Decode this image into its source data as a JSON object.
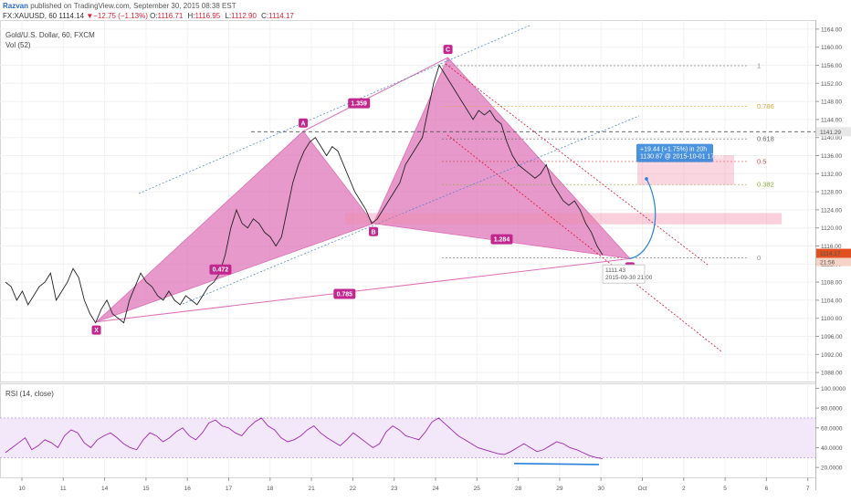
{
  "header": {
    "publisher": "Razvan",
    "published_text": "published on TradingView.com, September 30, 2015 08:38 EST"
  },
  "symbol_bar": {
    "symbol": "FX:XAUUSD, 60",
    "last": "1114.14",
    "change": "▼−12.75 (−1.13%)",
    "o_label": "O:",
    "o_value": "1116.71",
    "h_label": "H:",
    "h_value": "1116.95",
    "l_label": "L:",
    "l_value": "1112.90",
    "c_label": "C:",
    "c_value": "1114.17"
  },
  "panes": {
    "main_title": "Gold/U.S. Dollar, 60, FXCM",
    "volume_label": "Vol (52)",
    "rsi_title": "RSI (14, close)"
  },
  "colors": {
    "pattern_fill": "#dd6db5",
    "pattern_label": "#c2278f",
    "candle": "#222222",
    "fib_line": "#8c8c8c",
    "fib_618": "#666666",
    "fib_05": "#d24a4a",
    "fib_0382": "#8cb040",
    "fib_0786": "#e0a640",
    "trend_line": "#4a78d0",
    "channel": "#e01030",
    "projection": "#2980d9",
    "rsi_band": "#f3e8fa",
    "rsi_line": "#9c27b0",
    "price_tag": "#e05020"
  },
  "chart_data": {
    "type": "line",
    "title": "Gold/U.S. Dollar, 60, FXCM",
    "price_axis": {
      "ticks": [
        "1164.00",
        "1160.00",
        "1156.00",
        "1152.00",
        "1148.00",
        "1144.00",
        "1140.00",
        "1136.00",
        "1132.00",
        "1128.00",
        "1124.00",
        "1120.00",
        "1116.00",
        "1112.00",
        "1108.00",
        "1104.00",
        "1100.00",
        "1096.00",
        "1092.00",
        "1088.00"
      ],
      "ylim": [
        1086,
        1166
      ],
      "current_price": "1114.17",
      "current_time": "21:56",
      "line_price": "1141.29"
    },
    "rsi_axis": {
      "ticks": [
        "100.0000",
        "80.0000",
        "60.0000",
        "40.0000",
        "20.0000"
      ],
      "ylim": [
        10,
        105
      ],
      "band": [
        30,
        70
      ]
    },
    "date_axis": [
      "10",
      "11",
      "14",
      "15",
      "16",
      "17",
      "18",
      "21",
      "22",
      "23",
      "24",
      "25",
      "28",
      "29",
      "30",
      "Oct",
      "2",
      "5",
      "6",
      "7"
    ],
    "pattern_points": [
      {
        "label": "X",
        "date_index": 1.8,
        "price": 1099.2
      },
      {
        "label": "A",
        "date_index": 6.8,
        "price": 1141.4
      },
      {
        "label": "B",
        "date_index": 8.5,
        "price": 1121.0
      },
      {
        "label": "C",
        "date_index": 10.3,
        "price": 1157.7
      },
      {
        "label": "D",
        "date_index": 14.7,
        "price": 1113.2
      }
    ],
    "ratios": [
      "1.359",
      "0.472",
      "1.284",
      "0.785"
    ],
    "fib_levels": [
      {
        "label": "1",
        "price": 1155.9
      },
      {
        "label": "0.786",
        "price": 1146.9
      },
      {
        "label": "0.618",
        "price": 1139.7
      },
      {
        "label": "0.5",
        "price": 1134.7
      },
      {
        "label": "0.382",
        "price": 1129.6
      },
      {
        "label": "0",
        "price": 1113.4
      }
    ],
    "projection": {
      "text": "+19.44 (+1.75%) in 20h",
      "sub": "1130.87  @ 2015-10-01  17:00"
    },
    "low_marker": {
      "price": "1111.43",
      "time": "2015-09-30 21:00"
    },
    "price_series": [
      1108,
      1107,
      1104,
      1106,
      1103,
      1105,
      1107,
      1108,
      1110,
      1104,
      1106,
      1108,
      1111,
      1109,
      1104,
      1101,
      1099,
      1102,
      1104,
      1101,
      1100,
      1099,
      1104,
      1107,
      1110,
      1108,
      1107,
      1105,
      1104,
      1106,
      1104,
      1103,
      1105,
      1104,
      1103,
      1105,
      1107,
      1108,
      1110,
      1114,
      1120,
      1124,
      1121,
      1120,
      1122,
      1121,
      1119,
      1118,
      1116,
      1118,
      1124,
      1130,
      1134,
      1137,
      1139,
      1140,
      1138,
      1136,
      1138,
      1137,
      1134,
      1131,
      1128,
      1126,
      1124,
      1121,
      1122,
      1124,
      1126,
      1128,
      1130,
      1134,
      1136,
      1138,
      1140,
      1146,
      1152,
      1156,
      1154,
      1152,
      1150,
      1148,
      1146,
      1144,
      1146,
      1145,
      1146,
      1144,
      1143,
      1139,
      1136,
      1134,
      1133,
      1132,
      1131,
      1132,
      1134,
      1130,
      1128,
      1126,
      1125,
      1126,
      1124,
      1121,
      1119,
      1116,
      1114
    ],
    "rsi_series": [
      35,
      40,
      45,
      50,
      38,
      42,
      48,
      45,
      40,
      52,
      58,
      55,
      45,
      40,
      48,
      52,
      55,
      50,
      44,
      40,
      38,
      48,
      55,
      52,
      46,
      50,
      56,
      60,
      52,
      48,
      55,
      65,
      68,
      62,
      60,
      55,
      52,
      60,
      66,
      70,
      62,
      58,
      50,
      46,
      48,
      52,
      58,
      62,
      55,
      50,
      46,
      42,
      48,
      55,
      50,
      45,
      40,
      44,
      56,
      62,
      58,
      52,
      50,
      48,
      56,
      66,
      70,
      64,
      58,
      52,
      48,
      44,
      40,
      38,
      36,
      34,
      33,
      36,
      40,
      44,
      40,
      36,
      38,
      42,
      46,
      44,
      40,
      38,
      35,
      32,
      30,
      29
    ],
    "rsi_divergence": [
      24,
      23
    ]
  }
}
